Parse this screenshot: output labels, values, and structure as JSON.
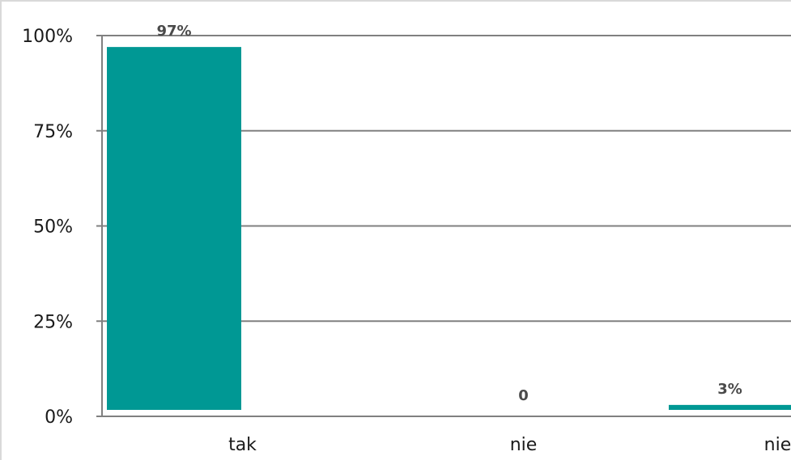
{
  "chart_data": {
    "type": "bar",
    "title": "",
    "xlabel": "",
    "ylabel": "",
    "categories": [
      "tak",
      "nie",
      "nie wiem"
    ],
    "values": [
      97,
      0,
      3
    ],
    "data_labels": [
      "97%",
      "0",
      "3%"
    ],
    "ylim": [
      0,
      100
    ],
    "yticks": [
      0,
      25,
      50,
      75,
      100
    ],
    "ytick_labels": [
      "0%",
      "25%",
      "50%",
      "75%",
      "100%"
    ],
    "grid": true,
    "legend": "none",
    "colors": {
      "bar": "#009894",
      "grid": "#808080",
      "axis": "#808080",
      "frame": "#d9d9d9"
    }
  }
}
